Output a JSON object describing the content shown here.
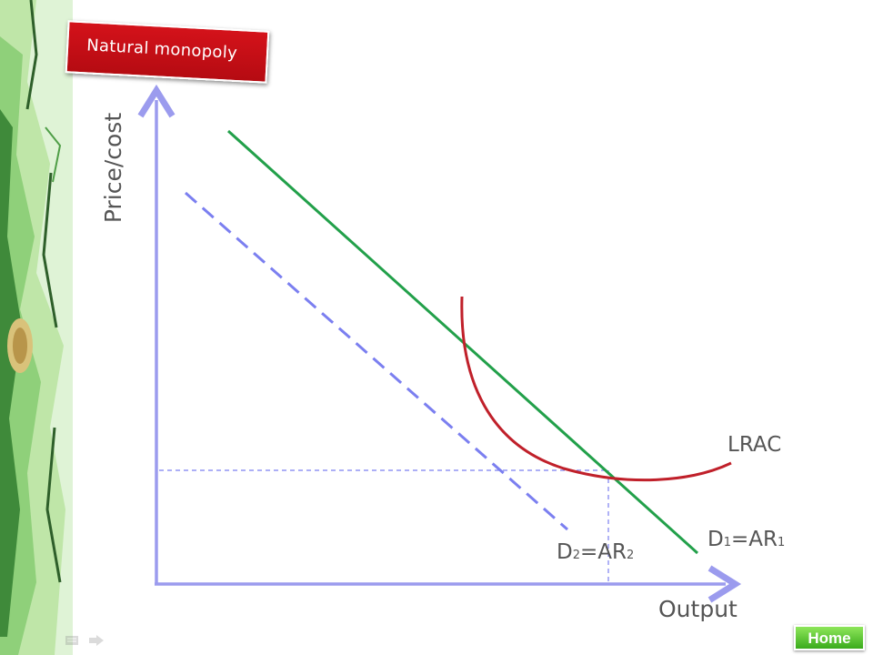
{
  "slide": {
    "title": "Natural monopoly",
    "home_button": "Home",
    "icons": [
      "notes-icon",
      "next-slide-arrow-icon"
    ]
  },
  "diagram": {
    "y_axis_label": "Price/cost",
    "x_axis_label": "Output",
    "curves": [
      {
        "id": "d1",
        "label_main": "D",
        "label_sub": "1",
        "label_eq": "=AR",
        "label_sub2": "1",
        "style": "solid",
        "color": "#22a04a"
      },
      {
        "id": "d2",
        "label_main": "D",
        "label_sub": "2",
        "label_eq": "=AR",
        "label_sub2": "2",
        "style": "dashed",
        "color": "#7b7ff0"
      },
      {
        "id": "lrac",
        "label": "LRAC",
        "style": "solid",
        "color": "#c0202a"
      }
    ],
    "axis_color": "#9b9bee",
    "guide_line_color": "#7b7ff0"
  }
}
